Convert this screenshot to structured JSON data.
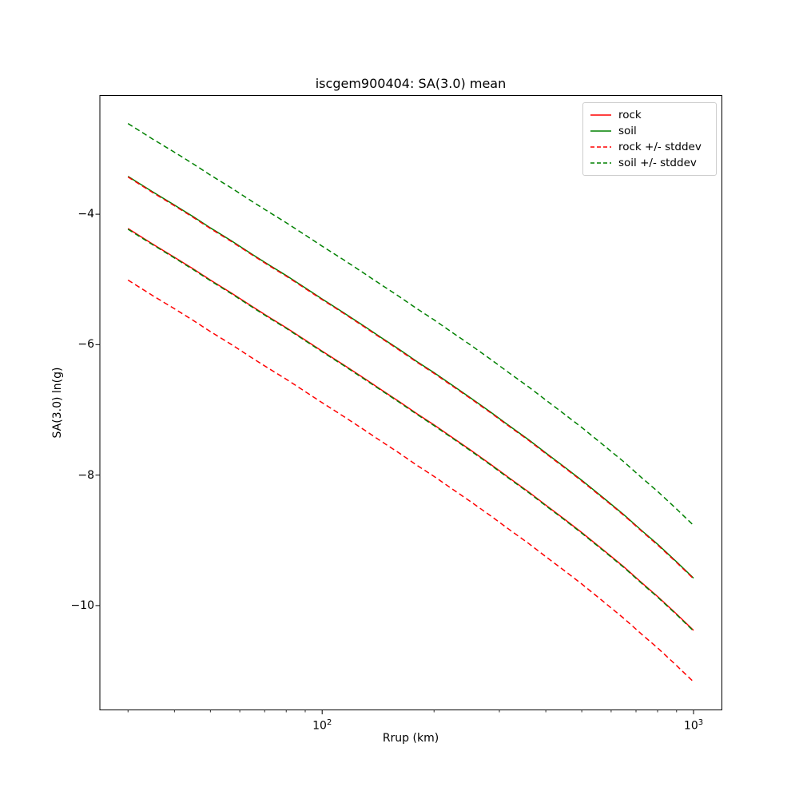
{
  "chart_data": {
    "type": "line",
    "title": "iscgem900404: SA(3.0) mean",
    "xlabel": "Rrup (km)",
    "ylabel": "SA(3.0) ln(g)",
    "xscale": "log",
    "yscale": "linear",
    "xlim": [
      25.2,
      1192
    ],
    "ylim": [
      -11.6,
      -2.18
    ],
    "grid": false,
    "legend_position": "upper right",
    "x": [
      30,
      35,
      40,
      45,
      50,
      57,
      65,
      72,
      80,
      90,
      100,
      115,
      130,
      145,
      160,
      180,
      200,
      225,
      250,
      285,
      320,
      360,
      400,
      450,
      500,
      575,
      650,
      725,
      800,
      900,
      1000
    ],
    "series": [
      {
        "name": "rock",
        "style": "solid",
        "color": "#ff0000",
        "values": [
          -4.22,
          -4.46,
          -4.66,
          -4.84,
          -5.01,
          -5.21,
          -5.42,
          -5.58,
          -5.74,
          -5.93,
          -6.1,
          -6.32,
          -6.52,
          -6.7,
          -6.86,
          -7.06,
          -7.23,
          -7.43,
          -7.61,
          -7.84,
          -8.05,
          -8.26,
          -8.46,
          -8.68,
          -8.88,
          -9.16,
          -9.41,
          -9.65,
          -9.86,
          -10.13,
          -10.38
        ]
      },
      {
        "name": "soil",
        "style": "solid",
        "color": "#008000",
        "values": [
          -3.42,
          -3.66,
          -3.86,
          -4.04,
          -4.21,
          -4.41,
          -4.62,
          -4.78,
          -4.94,
          -5.13,
          -5.3,
          -5.52,
          -5.72,
          -5.9,
          -6.06,
          -6.26,
          -6.43,
          -6.63,
          -6.81,
          -7.04,
          -7.25,
          -7.46,
          -7.66,
          -7.88,
          -8.08,
          -8.36,
          -8.61,
          -8.85,
          -9.06,
          -9.33,
          -9.58
        ]
      },
      {
        "name": "rock +/- stddev",
        "style": "dashed",
        "color": "#ff0000",
        "upper": [
          -3.43,
          -3.67,
          -3.87,
          -4.05,
          -4.22,
          -4.42,
          -4.63,
          -4.79,
          -4.95,
          -5.14,
          -5.31,
          -5.53,
          -5.73,
          -5.91,
          -6.07,
          -6.27,
          -6.44,
          -6.64,
          -6.82,
          -7.05,
          -7.26,
          -7.47,
          -7.67,
          -7.89,
          -8.09,
          -8.37,
          -8.62,
          -8.86,
          -9.07,
          -9.34,
          -9.59
        ],
        "lower": [
          -5.01,
          -5.25,
          -5.45,
          -5.63,
          -5.8,
          -6.0,
          -6.21,
          -6.37,
          -6.53,
          -6.72,
          -6.89,
          -7.11,
          -7.31,
          -7.49,
          -7.65,
          -7.85,
          -8.02,
          -8.22,
          -8.4,
          -8.63,
          -8.84,
          -9.05,
          -9.25,
          -9.47,
          -9.67,
          -9.95,
          -10.2,
          -10.44,
          -10.65,
          -10.92,
          -11.17
        ]
      },
      {
        "name": "soil +/- stddev",
        "style": "dashed",
        "color": "#008000",
        "upper": [
          -2.61,
          -2.85,
          -3.05,
          -3.23,
          -3.4,
          -3.6,
          -3.81,
          -3.97,
          -4.13,
          -4.32,
          -4.49,
          -4.71,
          -4.91,
          -5.09,
          -5.25,
          -5.45,
          -5.62,
          -5.82,
          -6.0,
          -6.23,
          -6.44,
          -6.65,
          -6.85,
          -7.07,
          -7.27,
          -7.55,
          -7.8,
          -8.04,
          -8.25,
          -8.52,
          -8.77
        ],
        "lower": [
          -4.23,
          -4.47,
          -4.67,
          -4.85,
          -5.02,
          -5.22,
          -5.43,
          -5.59,
          -5.75,
          -5.94,
          -6.11,
          -6.33,
          -6.53,
          -6.71,
          -6.87,
          -7.07,
          -7.24,
          -7.44,
          -7.62,
          -7.85,
          -8.06,
          -8.27,
          -8.47,
          -8.69,
          -8.89,
          -9.17,
          -9.42,
          -9.66,
          -9.87,
          -10.14,
          -10.39
        ]
      }
    ],
    "legend": [
      {
        "label": "rock",
        "color": "#ff0000",
        "dash": false
      },
      {
        "label": "soil",
        "color": "#008000",
        "dash": false
      },
      {
        "label": "rock +/- stddev",
        "color": "#ff0000",
        "dash": true
      },
      {
        "label": "soil +/- stddev",
        "color": "#008000",
        "dash": true
      }
    ],
    "yticks": [
      {
        "value": -4,
        "label": "−4"
      },
      {
        "value": -6,
        "label": "−6"
      },
      {
        "value": -8,
        "label": "−8"
      },
      {
        "value": -10,
        "label": "−10"
      }
    ],
    "xticks_major": [
      {
        "value": 100,
        "label": "10^2"
      },
      {
        "value": 1000,
        "label": "10^3"
      }
    ],
    "xticks_minor": [
      30,
      40,
      50,
      60,
      70,
      80,
      90,
      200,
      300,
      400,
      500,
      600,
      700,
      800,
      900
    ]
  }
}
